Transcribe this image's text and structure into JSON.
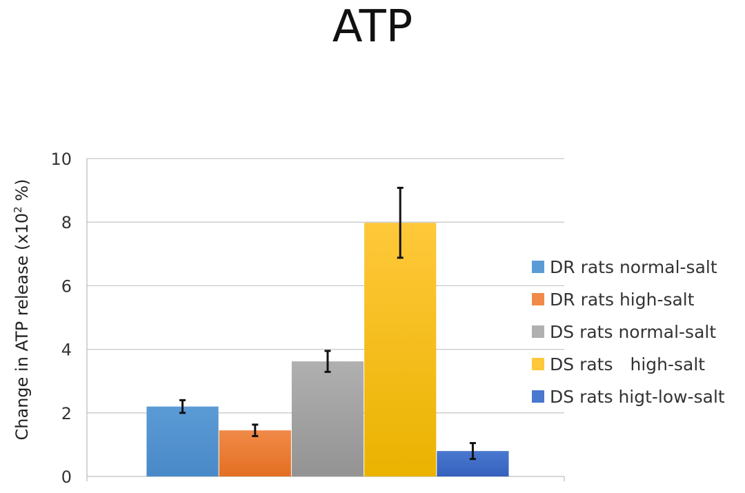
{
  "chart_data": {
    "type": "bar",
    "title": "ATP",
    "ylabel_main": "Change in ATP release (x10",
    "ylabel_sup": "2",
    "ylabel_end": " %)",
    "xlabel": "",
    "ylim": [
      0,
      10
    ],
    "yticks": [
      0,
      2,
      4,
      6,
      8,
      10
    ],
    "grid": true,
    "legend_position": "right",
    "series": [
      {
        "name": "DR rats normal-salt",
        "value": 2.2,
        "error": 0.2,
        "color": "#5b9bd5",
        "color_dark": "#4a89c8"
      },
      {
        "name": "DR rats high-salt",
        "value": 1.45,
        "error": 0.18,
        "color": "#f08a48",
        "color_dark": "#e46f22"
      },
      {
        "name": "DS rats normal-salt",
        "value": 3.62,
        "error": 0.33,
        "color": "#b0b0b0",
        "color_dark": "#939393"
      },
      {
        "name": "DS rats　high-salt",
        "value": 7.98,
        "error": 1.1,
        "color": "#ffc83a",
        "color_dark": "#eab300"
      },
      {
        "name": "DS rats higt-low-salt",
        "value": 0.8,
        "error": 0.25,
        "color": "#4a78cf",
        "color_dark": "#3561bd"
      }
    ]
  }
}
